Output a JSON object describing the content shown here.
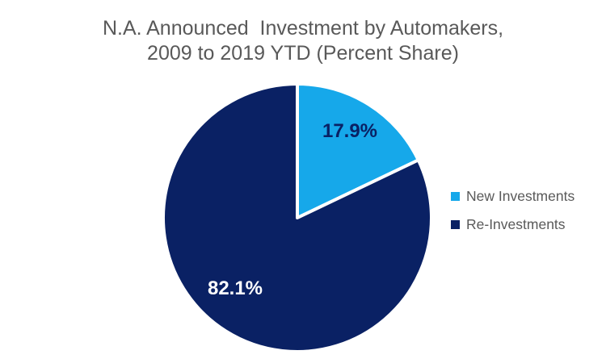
{
  "chart_data": {
    "type": "pie",
    "title": "N.A. Announced  Investment by Automakers, 2009 to 2019 YTD (Percent Share)",
    "title_lines": [
      "N.A. Announced  Investment by Automakers,",
      "2009 to 2019 YTD (Percent Share)"
    ],
    "slices": [
      {
        "name": "New Investments",
        "value": 17.9,
        "label": "17.9%",
        "color": "#16A8EA",
        "label_color": "#0A2164"
      },
      {
        "name": "Re-Investments",
        "value": 82.1,
        "label": "82.1%",
        "color": "#0A2164",
        "label_color": "#FFFFFF"
      }
    ],
    "start_angle_deg": 0,
    "direction": "clockwise",
    "legend_position": "right",
    "slice_border_color": "#FFFFFF",
    "title_color": "#595959",
    "legend_text_color": "#595959",
    "background_color": "#FFFFFF"
  }
}
